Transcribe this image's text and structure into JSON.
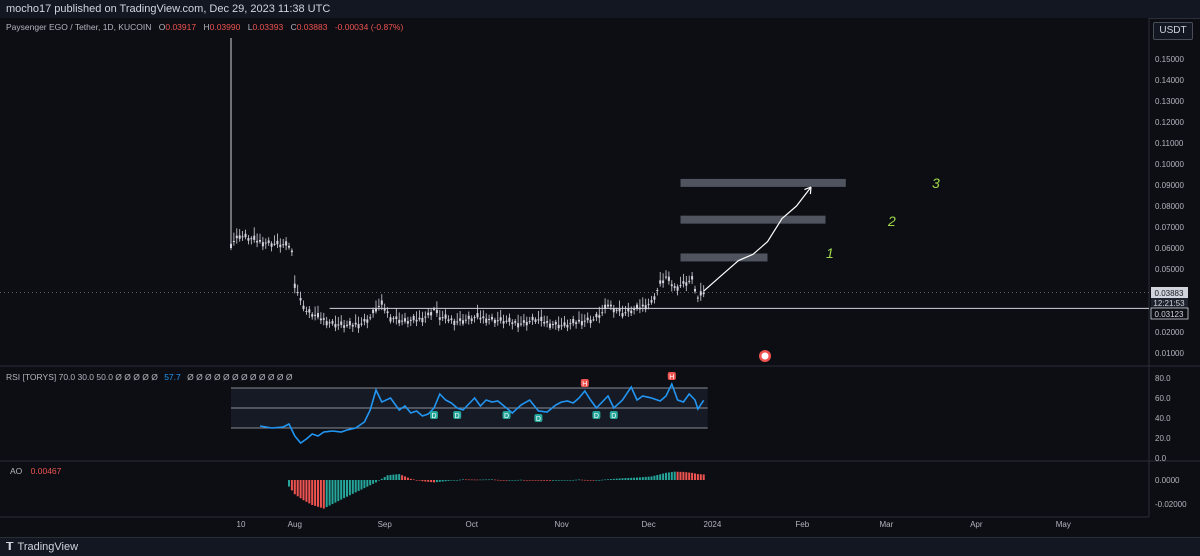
{
  "header": {
    "published": "mocho17 published on TradingView.com, Dec 29, 2023 11:38 UTC"
  },
  "symbol": {
    "name": "Paysenger EGO / Tether, 1D, KUCOIN",
    "ohlc": [
      {
        "k": "O",
        "v": "0.03917"
      },
      {
        "k": "H",
        "v": "0.03990"
      },
      {
        "k": "L",
        "v": "0.03393"
      },
      {
        "k": "C",
        "v": "0.03883"
      }
    ],
    "change": "-0.00034 (-0.87%)"
  },
  "currency_button": "USDT",
  "price_labels": {
    "last": "0.03883",
    "countdown": "12:21:53",
    "level": "0.03123"
  },
  "annotations": {
    "target_1": "1",
    "target_2": "2",
    "target_3": "3"
  },
  "rsi": {
    "title": "RSI [TORYS] 70.0 30.0 50.0 Ø Ø Ø Ø Ø",
    "value": "57.7",
    "tail": "Ø Ø Ø Ø Ø Ø Ø Ø Ø Ø Ø Ø",
    "markers": [
      "H",
      "H",
      "D",
      "D",
      "D",
      "D",
      "D",
      "D"
    ]
  },
  "ao": {
    "title": "AO",
    "value": "0.00467"
  },
  "footer": {
    "brand": "TradingView"
  },
  "colors": {
    "background": "#0c0e14",
    "candle": "#d1d4dc",
    "rsi_line": "#2196f3",
    "ao_up": "#26a69a",
    "ao_down": "#ef5350",
    "target_box": "#5d606b",
    "arrow": "#ffffff",
    "annotation": "#9fd94a"
  },
  "chart_data": [
    {
      "type": "candlestick",
      "title": "Paysenger EGO / Tether, 1D, KUCOIN",
      "ylim": [
        0.0,
        0.16
      ],
      "yticks": [
        "0.15000",
        "0.14000",
        "0.13000",
        "0.12000",
        "0.11000",
        "0.10000",
        "0.09000",
        "0.08000",
        "0.07000",
        "0.06000",
        "0.05000",
        "0.04000",
        "0.03000",
        "0.02000",
        "0.01000"
      ],
      "yticks_num": [
        0.15,
        0.14,
        0.13,
        0.12,
        0.11,
        0.1,
        0.09,
        0.08,
        0.07,
        0.06,
        0.05,
        0.04,
        0.03,
        0.02,
        0.01
      ],
      "xticks": [
        "10",
        "Aug",
        "Sep",
        "Oct",
        "Nov",
        "Dec",
        "2024",
        "Feb",
        "Mar",
        "Apr",
        "May"
      ],
      "xticks_day": [
        0,
        22,
        53,
        83,
        114,
        144,
        166,
        197,
        226,
        257,
        287
      ],
      "horizontal_level": 0.03123,
      "last_price": 0.03883,
      "target_zones": [
        {
          "label": "1",
          "price": 0.0555,
          "from_day": 155,
          "to_day": 185
        },
        {
          "label": "2",
          "price": 0.0735,
          "from_day": 155,
          "to_day": 205
        },
        {
          "label": "3",
          "price": 0.091,
          "from_day": 155,
          "to_day": 212
        }
      ],
      "projection_path": [
        [
          163,
          0.0395
        ],
        [
          170,
          0.048
        ],
        [
          175,
          0.054
        ],
        [
          180,
          0.057
        ],
        [
          185,
          0.063
        ],
        [
          190,
          0.074
        ],
        [
          195,
          0.08
        ],
        [
          200,
          0.089
        ]
      ],
      "close_keypoints": [
        [
          0,
          0.062
        ],
        [
          3,
          0.066
        ],
        [
          10,
          0.063
        ],
        [
          20,
          0.061
        ],
        [
          21,
          0.058
        ],
        [
          22,
          0.043
        ],
        [
          24,
          0.035
        ],
        [
          26,
          0.03
        ],
        [
          30,
          0.027
        ],
        [
          35,
          0.024
        ],
        [
          40,
          0.023
        ],
        [
          45,
          0.024
        ],
        [
          48,
          0.027
        ],
        [
          50,
          0.031
        ],
        [
          52,
          0.033
        ],
        [
          55,
          0.027
        ],
        [
          60,
          0.025
        ],
        [
          65,
          0.026
        ],
        [
          68,
          0.028
        ],
        [
          70,
          0.031
        ],
        [
          72,
          0.027
        ],
        [
          78,
          0.025
        ],
        [
          85,
          0.027
        ],
        [
          90,
          0.026
        ],
        [
          95,
          0.025
        ],
        [
          100,
          0.024
        ],
        [
          105,
          0.026
        ],
        [
          110,
          0.024
        ],
        [
          115,
          0.023
        ],
        [
          120,
          0.025
        ],
        [
          125,
          0.026
        ],
        [
          128,
          0.029
        ],
        [
          130,
          0.033
        ],
        [
          135,
          0.029
        ],
        [
          140,
          0.031
        ],
        [
          145,
          0.034
        ],
        [
          148,
          0.043
        ],
        [
          150,
          0.046
        ],
        [
          153,
          0.041
        ],
        [
          156,
          0.043
        ],
        [
          159,
          0.045
        ],
        [
          161,
          0.036
        ],
        [
          163,
          0.0388
        ]
      ],
      "first_day_high": 0.16
    },
    {
      "type": "line",
      "name": "RSI [TORYS]",
      "ylim": [
        0,
        90
      ],
      "yticks": [
        "80.0",
        "60.0",
        "40.0",
        "20.0",
        "0.0"
      ],
      "yticks_num": [
        80,
        60,
        40,
        20,
        0
      ],
      "bands": [
        70,
        50,
        30
      ],
      "current": 57.7,
      "keypoints": [
        [
          10,
          32
        ],
        [
          14,
          30
        ],
        [
          18,
          31
        ],
        [
          20,
          34
        ],
        [
          22,
          22
        ],
        [
          24,
          15
        ],
        [
          26,
          19
        ],
        [
          28,
          24
        ],
        [
          30,
          22
        ],
        [
          32,
          26
        ],
        [
          35,
          27
        ],
        [
          38,
          26
        ],
        [
          40,
          28
        ],
        [
          43,
          30
        ],
        [
          46,
          36
        ],
        [
          48,
          48
        ],
        [
          50,
          68
        ],
        [
          52,
          56
        ],
        [
          55,
          60
        ],
        [
          58,
          48
        ],
        [
          60,
          52
        ],
        [
          62,
          45
        ],
        [
          64,
          47
        ],
        [
          66,
          42
        ],
        [
          68,
          44
        ],
        [
          70,
          50
        ],
        [
          72,
          64
        ],
        [
          74,
          58
        ],
        [
          76,
          55
        ],
        [
          78,
          50
        ],
        [
          80,
          48
        ],
        [
          82,
          54
        ],
        [
          84,
          60
        ],
        [
          86,
          52
        ],
        [
          88,
          58
        ],
        [
          90,
          56
        ],
        [
          92,
          57
        ],
        [
          95,
          50
        ],
        [
          97,
          45
        ],
        [
          100,
          53
        ],
        [
          103,
          58
        ],
        [
          106,
          47
        ],
        [
          109,
          46
        ],
        [
          112,
          53
        ],
        [
          114,
          56
        ],
        [
          116,
          57
        ],
        [
          118,
          55
        ],
        [
          120,
          60
        ],
        [
          122,
          67
        ],
        [
          124,
          58
        ],
        [
          126,
          50
        ],
        [
          128,
          56
        ],
        [
          130,
          62
        ],
        [
          132,
          50
        ],
        [
          135,
          58
        ],
        [
          138,
          71
        ],
        [
          140,
          58
        ],
        [
          142,
          62
        ],
        [
          145,
          60
        ],
        [
          148,
          57
        ],
        [
          150,
          62
        ],
        [
          152,
          74
        ],
        [
          154,
          58
        ],
        [
          156,
          56
        ],
        [
          158,
          64
        ],
        [
          160,
          58
        ],
        [
          161,
          49
        ],
        [
          163,
          57.7
        ]
      ]
    },
    {
      "type": "bar",
      "name": "AO",
      "ylim": [
        -0.03,
        0.009
      ],
      "yticks": [
        "0.0000",
        "-0.02000"
      ],
      "yticks_num": [
        0.0,
        -0.02
      ],
      "current": 0.00467,
      "keypoints": [
        [
          20,
          -0.0055
        ],
        [
          22,
          -0.012
        ],
        [
          25,
          -0.017
        ],
        [
          28,
          -0.021
        ],
        [
          32,
          -0.024
        ],
        [
          36,
          -0.019
        ],
        [
          40,
          -0.014
        ],
        [
          45,
          -0.008
        ],
        [
          50,
          -0.002
        ],
        [
          54,
          0.004
        ],
        [
          58,
          0.005
        ],
        [
          62,
          0.001
        ],
        [
          66,
          -0.001
        ],
        [
          70,
          -0.002
        ],
        [
          74,
          -0.001
        ],
        [
          80,
          0.0005
        ],
        [
          85,
          0.0003
        ],
        [
          90,
          0.0005
        ],
        [
          95,
          -0.0004
        ],
        [
          100,
          0.0002
        ],
        [
          105,
          -0.0005
        ],
        [
          110,
          -0.0006
        ],
        [
          115,
          -0.0005
        ],
        [
          120,
          0.0004
        ],
        [
          125,
          -0.0004
        ],
        [
          130,
          0.0006
        ],
        [
          135,
          0.0015
        ],
        [
          140,
          0.002
        ],
        [
          145,
          0.003
        ],
        [
          150,
          0.006
        ],
        [
          153,
          0.007
        ],
        [
          156,
          0.0068
        ],
        [
          159,
          0.006
        ],
        [
          161,
          0.005
        ],
        [
          163,
          0.00467
        ]
      ]
    }
  ]
}
